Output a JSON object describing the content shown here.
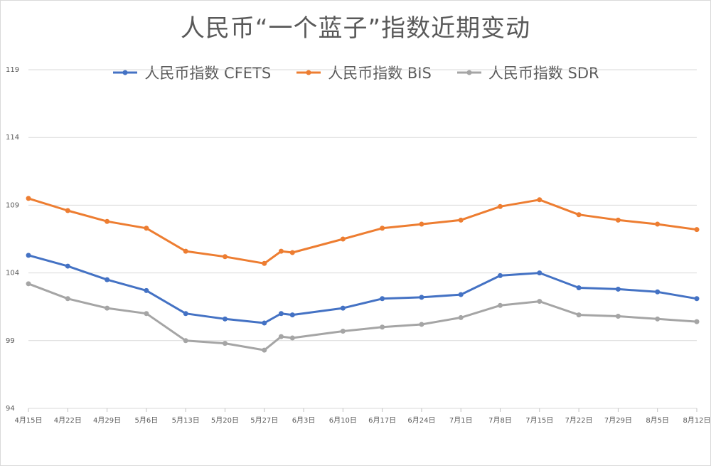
{
  "chart_data": {
    "type": "line",
    "title": "人民币“一个蓝子”指数近期变动",
    "xlabel": "",
    "ylabel": "",
    "ylim": [
      94,
      119
    ],
    "yticks": [
      94,
      99,
      104,
      109,
      114,
      119
    ],
    "grid": true,
    "legend_position": "top",
    "x_tick_labels": [
      "4月15日",
      "4月22日",
      "4月29日",
      "5月6日",
      "5月13日",
      "5月20日",
      "5月27日",
      "6月3日",
      "6月10日",
      "6月17日",
      "6月24日",
      "7月1日",
      "7月8日",
      "7月15日",
      "7月22日",
      "7月29日",
      "8月5日",
      "8月12日"
    ],
    "x_axis_start": "4月15日",
    "x_axis_span_days": 119,
    "x_days": [
      0,
      7,
      14,
      21,
      28,
      35,
      42,
      45,
      47,
      56,
      63,
      70,
      77,
      84,
      91,
      98,
      105,
      112,
      119
    ],
    "series": [
      {
        "name": "人民币指数 CFETS",
        "color": "#4472c4",
        "values": [
          105.3,
          104.5,
          103.5,
          102.7,
          101.0,
          100.6,
          100.3,
          101.0,
          100.9,
          101.4,
          102.1,
          102.2,
          102.4,
          103.8,
          104.0,
          102.9,
          102.8,
          102.6,
          102.1
        ]
      },
      {
        "name": "人民币指数 BIS",
        "color": "#ed7d31",
        "values": [
          109.5,
          108.6,
          107.8,
          107.3,
          105.6,
          105.2,
          104.7,
          105.6,
          105.5,
          106.5,
          107.3,
          107.6,
          107.9,
          108.9,
          109.4,
          108.3,
          107.9,
          107.6,
          107.2
        ]
      },
      {
        "name": "人民币指数 SDR",
        "color": "#a5a5a5",
        "values": [
          103.2,
          102.1,
          101.4,
          101.0,
          99.0,
          98.8,
          98.3,
          99.3,
          99.2,
          99.7,
          100.0,
          100.2,
          100.7,
          101.6,
          101.9,
          100.9,
          100.8,
          100.6,
          100.4
        ]
      }
    ]
  }
}
